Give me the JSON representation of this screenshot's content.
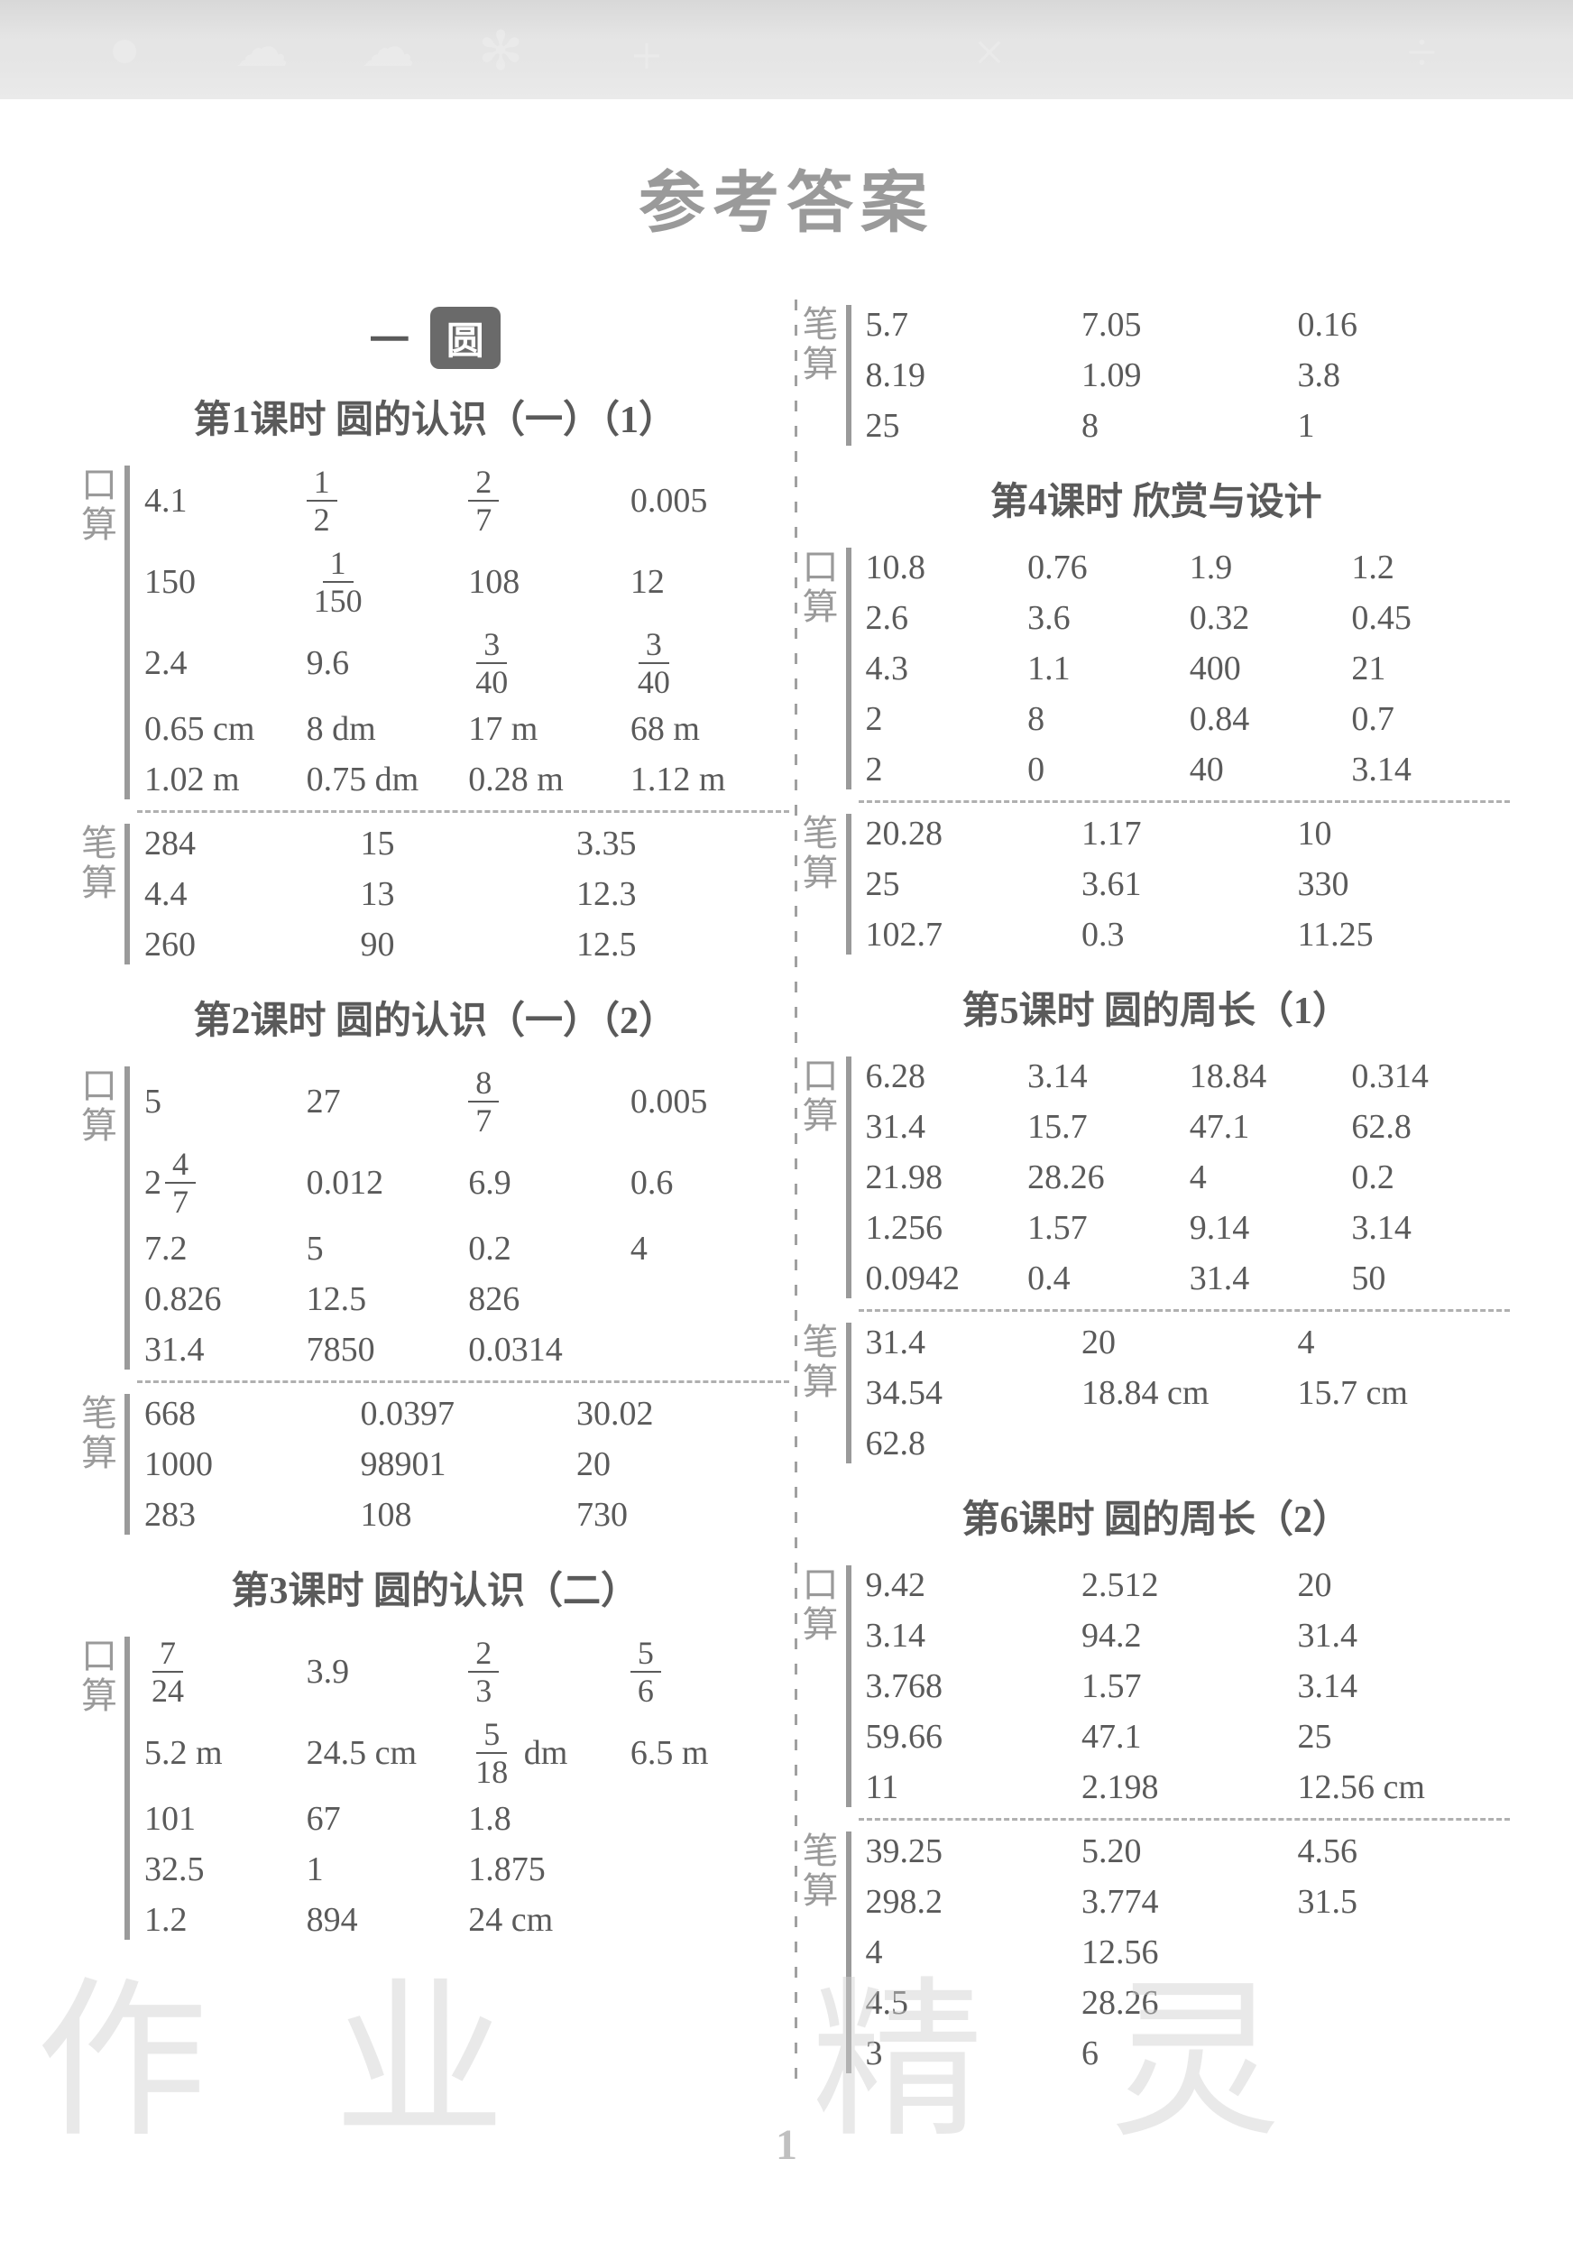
{
  "page": {
    "main_title": "参考答案",
    "unit_prefix": "一",
    "unit_pill": "圆",
    "page_number": "1",
    "watermark": "作业精灵",
    "labels": {
      "kousuan": [
        "口",
        "算"
      ],
      "bisuan": [
        "笔",
        "算"
      ]
    },
    "colors": {
      "title": "#9a9a9a",
      "text": "#5a5a5a",
      "side_label": "#9a9a9a",
      "bar": "#9a9a9a",
      "dash": "#b0b0b0",
      "pill_bg": "#6a6a6a",
      "pill_fg": "#ffffff",
      "band_top": "#d8d8d8",
      "band_bot": "#eaeaea"
    },
    "font_sizes": {
      "main_title": 74,
      "lesson": 42,
      "cell": 38,
      "frac": 36,
      "side": 40
    }
  },
  "left": {
    "lesson1": {
      "title": "第1课时  圆的认识（一）（1）",
      "kousuan_cols": 4,
      "kousuan": [
        [
          "4.1",
          {
            "frac": [
              "1",
              "2"
            ]
          },
          {
            "frac": [
              "2",
              "7"
            ]
          },
          "0.005"
        ],
        [
          "150",
          {
            "frac": [
              "1",
              "150"
            ]
          },
          "108",
          "12"
        ],
        [
          "2.4",
          "9.6",
          {
            "frac": [
              "3",
              "40"
            ]
          },
          {
            "frac": [
              "3",
              "40"
            ]
          }
        ],
        [
          "0.65 cm",
          "8 dm",
          "17 m",
          "68 m"
        ],
        [
          "1.02 m",
          "0.75 dm",
          "0.28 m",
          "1.12 m"
        ]
      ],
      "bisuan_cols": 3,
      "bisuan": [
        [
          "284",
          "15",
          "3.35"
        ],
        [
          "4.4",
          "13",
          "12.3"
        ],
        [
          "260",
          "90",
          "12.5"
        ]
      ]
    },
    "lesson2": {
      "title": "第2课时  圆的认识（一）（2）",
      "kousuan_cols": 4,
      "kousuan": [
        [
          "5",
          "27",
          {
            "frac": [
              "8",
              "7"
            ]
          },
          "0.005"
        ],
        [
          {
            "mixed": [
              "2",
              "4",
              "7"
            ]
          },
          "0.012",
          "6.9",
          "0.6"
        ],
        [
          "7.2",
          "5",
          "0.2",
          "4"
        ],
        [
          "0.826",
          "12.5",
          "826",
          ""
        ],
        [
          "31.4",
          "7850",
          "0.0314",
          ""
        ]
      ],
      "bisuan_cols": 3,
      "bisuan": [
        [
          "668",
          "0.0397",
          "30.02"
        ],
        [
          "1000",
          "98901",
          "20"
        ],
        [
          "283",
          "108",
          "730"
        ]
      ]
    },
    "lesson3": {
      "title": "第3课时  圆的认识（二）",
      "kousuan_cols": 4,
      "kousuan": [
        [
          {
            "frac": [
              "7",
              "24"
            ]
          },
          "3.9",
          {
            "frac": [
              "2",
              "3"
            ]
          },
          {
            "frac": [
              "5",
              "6"
            ]
          }
        ],
        [
          "5.2 m",
          "24.5 cm",
          {
            "fracunit": [
              "5",
              "18",
              "dm"
            ]
          },
          "6.5 m"
        ],
        [
          "101",
          "67",
          "1.8",
          ""
        ],
        [
          "32.5",
          "1",
          "1.875",
          ""
        ],
        [
          "1.2",
          "894",
          "24 cm",
          ""
        ]
      ]
    }
  },
  "right": {
    "lesson3_bisuan": {
      "cols": 3,
      "rows": [
        [
          "5.7",
          "7.05",
          "0.16"
        ],
        [
          "8.19",
          "1.09",
          "3.8"
        ],
        [
          "25",
          "8",
          "1"
        ]
      ]
    },
    "lesson4": {
      "title": "第4课时  欣赏与设计",
      "kousuan_cols": 4,
      "kousuan": [
        [
          "10.8",
          "0.76",
          "1.9",
          "1.2"
        ],
        [
          "2.6",
          "3.6",
          "0.32",
          "0.45"
        ],
        [
          "4.3",
          "1.1",
          "400",
          "21"
        ],
        [
          "2",
          "8",
          "0.84",
          "0.7"
        ],
        [
          "2",
          "0",
          "40",
          "3.14"
        ]
      ],
      "bisuan_cols": 3,
      "bisuan": [
        [
          "20.28",
          "1.17",
          "10"
        ],
        [
          "25",
          "3.61",
          "330"
        ],
        [
          "102.7",
          "0.3",
          "11.25"
        ]
      ]
    },
    "lesson5": {
      "title": "第5课时  圆的周长（1）",
      "kousuan_cols": 4,
      "kousuan": [
        [
          "6.28",
          "3.14",
          "18.84",
          "0.314"
        ],
        [
          "31.4",
          "15.7",
          "47.1",
          "62.8"
        ],
        [
          "21.98",
          "28.26",
          "4",
          "0.2"
        ],
        [
          "1.256",
          "1.57",
          "9.14",
          "3.14"
        ],
        [
          "0.0942",
          "0.4",
          "31.4",
          "50"
        ]
      ],
      "bisuan_cols": 3,
      "bisuan": [
        [
          "31.4",
          "20",
          "4"
        ],
        [
          "34.54",
          "18.84 cm",
          "15.7 cm"
        ],
        [
          "62.8",
          "",
          ""
        ]
      ]
    },
    "lesson6": {
      "title": "第6课时  圆的周长（2）",
      "kousuan_cols": 3,
      "kousuan": [
        [
          "9.42",
          "2.512",
          "20"
        ],
        [
          "3.14",
          "94.2",
          "31.4"
        ],
        [
          "3.768",
          "1.57",
          "3.14"
        ],
        [
          "59.66",
          "47.1",
          "25"
        ],
        [
          "11",
          "2.198",
          "12.56 cm"
        ]
      ],
      "bisuan_cols": 3,
      "bisuan": [
        [
          "39.25",
          "5.20",
          "4.56"
        ],
        [
          "298.2",
          "3.774",
          "31.5"
        ],
        [
          "4",
          "12.56",
          ""
        ],
        [
          "4.5",
          "28.26",
          ""
        ],
        [
          "3",
          "6",
          ""
        ]
      ]
    }
  }
}
